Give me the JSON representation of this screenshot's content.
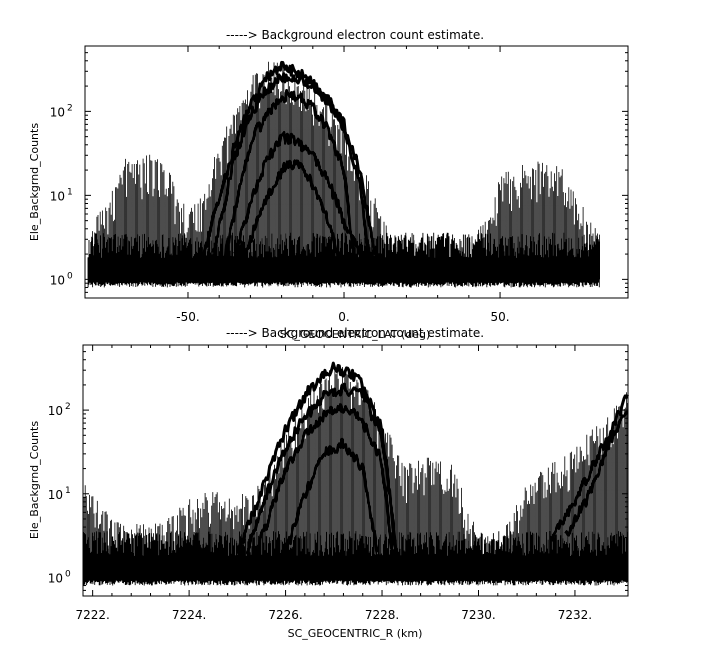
{
  "chart_data": [
    {
      "type": "scatter",
      "title": "-----> Background electron count estimate.",
      "xlabel": "SC_GEOCENTRIC_LAT (deg)",
      "ylabel": "Ele_Backgrnd_Counts",
      "xlim": [
        -83,
        91
      ],
      "ylim": [
        0.6,
        600
      ],
      "yscale": "log",
      "grid": false,
      "x_ticks": [
        {
          "value": -50,
          "label": "-50."
        },
        {
          "value": 0,
          "label": "0."
        },
        {
          "value": 50,
          "label": "50."
        }
      ],
      "y_ticks": [
        {
          "value": 1,
          "label": "10",
          "exp": "0"
        },
        {
          "value": 10,
          "label": "10",
          "exp": "1"
        },
        {
          "value": 100,
          "label": "10",
          "exp": "2"
        }
      ],
      "series": [
        {
          "style": "noise-floor",
          "x": [
            -82,
            82
          ],
          "y": [
            0.8,
            3
          ]
        },
        {
          "style": "envelope",
          "x": [
            -82,
            -75,
            -70,
            -65,
            -60,
            -55,
            -50,
            -45,
            -40,
            -35,
            -30,
            -25,
            -20,
            -15,
            -10,
            -5,
            0,
            5,
            10,
            15,
            20,
            30,
            40,
            45,
            50,
            55,
            60,
            65,
            70,
            75,
            82
          ],
          "y": [
            3,
            10,
            25,
            25,
            28,
            15,
            6,
            10,
            40,
            100,
            220,
            350,
            330,
            260,
            180,
            110,
            60,
            25,
            8,
            3,
            3,
            3,
            3,
            4,
            15,
            20,
            20,
            25,
            20,
            8,
            3
          ]
        },
        {
          "style": "arc",
          "x": [
            -45,
            -35,
            -30,
            -25,
            -20,
            -15,
            -10,
            -5,
            0,
            5,
            10
          ],
          "y": [
            2,
            40,
            120,
            250,
            340,
            300,
            220,
            140,
            70,
            20,
            2
          ]
        },
        {
          "style": "arc",
          "x": [
            -42,
            -35,
            -30,
            -25,
            -20,
            -15,
            -10,
            -5,
            0,
            5,
            8
          ],
          "y": [
            2,
            30,
            90,
            180,
            260,
            250,
            200,
            130,
            60,
            15,
            2
          ]
        },
        {
          "style": "arc",
          "x": [
            -38,
            -32,
            -28,
            -22,
            -18,
            -14,
            -10,
            -5,
            0,
            3
          ],
          "y": [
            2,
            20,
            60,
            120,
            160,
            150,
            110,
            60,
            20,
            2
          ]
        },
        {
          "style": "arc",
          "x": [
            -35,
            -30,
            -25,
            -20,
            -15,
            -10,
            -5,
            0,
            5
          ],
          "y": [
            2,
            8,
            25,
            50,
            45,
            30,
            15,
            5,
            2
          ]
        },
        {
          "style": "arc",
          "x": [
            -32,
            -27,
            -22,
            -18,
            -14,
            -10,
            -6,
            -2
          ],
          "y": [
            2,
            6,
            15,
            25,
            22,
            14,
            6,
            2
          ]
        }
      ]
    },
    {
      "type": "scatter",
      "title": "-----> Background electron count estimate.",
      "xlabel": "SC_GEOCENTRIC_R (km)",
      "ylabel": "Ele_Backgrnd_Counts",
      "xlim": [
        7221.8,
        7233.1
      ],
      "ylim": [
        0.6,
        600
      ],
      "yscale": "log",
      "grid": false,
      "x_ticks": [
        {
          "value": 7222,
          "label": "7222."
        },
        {
          "value": 7224,
          "label": "7224."
        },
        {
          "value": 7226,
          "label": "7226."
        },
        {
          "value": 7228,
          "label": "7228."
        },
        {
          "value": 7230,
          "label": "7230."
        },
        {
          "value": 7232,
          "label": "7232."
        }
      ],
      "y_ticks": [
        {
          "value": 1,
          "label": "10",
          "exp": "0"
        },
        {
          "value": 10,
          "label": "10",
          "exp": "1"
        },
        {
          "value": 100,
          "label": "10",
          "exp": "2"
        }
      ],
      "series": [
        {
          "style": "noise-floor",
          "x": [
            7221.8,
            7233.1
          ],
          "y": [
            0.8,
            3
          ]
        },
        {
          "style": "envelope",
          "x": [
            7221.8,
            7222.5,
            7223.0,
            7223.5,
            7224.0,
            7224.5,
            7225.0,
            7225.5,
            7226.0,
            7226.5,
            7227.0,
            7227.5,
            7228.0,
            7228.5,
            7229.0,
            7229.5,
            7230.0,
            7230.5,
            7231.0,
            7231.5,
            7232.0,
            7232.5,
            7233.1
          ],
          "y": [
            12,
            5,
            4,
            4,
            8,
            10,
            8,
            12,
            50,
            150,
            320,
            250,
            80,
            20,
            25,
            20,
            3,
            3,
            12,
            20,
            30,
            70,
            150
          ]
        },
        {
          "style": "arc",
          "x": [
            7225.0,
            7225.6,
            7226.0,
            7226.5,
            7227.0,
            7227.5,
            7228.0,
            7228.3
          ],
          "y": [
            2,
            15,
            60,
            180,
            330,
            250,
            60,
            2
          ]
        },
        {
          "style": "arc",
          "x": [
            7225.2,
            7225.8,
            7226.3,
            7226.8,
            7227.2,
            7227.6,
            7228.0,
            7228.3
          ],
          "y": [
            2,
            20,
            70,
            150,
            180,
            150,
            50,
            2
          ]
        },
        {
          "style": "arc",
          "x": [
            7225.4,
            7226.0,
            7226.5,
            7227.0,
            7227.5,
            7228.0,
            7228.2
          ],
          "y": [
            2,
            20,
            60,
            110,
            90,
            25,
            2
          ]
        },
        {
          "style": "arc",
          "x": [
            7226.0,
            7226.4,
            7226.8,
            7227.2,
            7227.6,
            7227.9
          ],
          "y": [
            2,
            10,
            30,
            40,
            20,
            2
          ]
        },
        {
          "style": "arc",
          "x": [
            7231.5,
            7232.0,
            7232.5,
            7233.1
          ],
          "y": [
            3,
            8,
            30,
            150
          ]
        },
        {
          "style": "arc",
          "x": [
            7231.8,
            7232.3,
            7232.7,
            7233.1
          ],
          "y": [
            3,
            10,
            40,
            100
          ]
        }
      ]
    }
  ]
}
